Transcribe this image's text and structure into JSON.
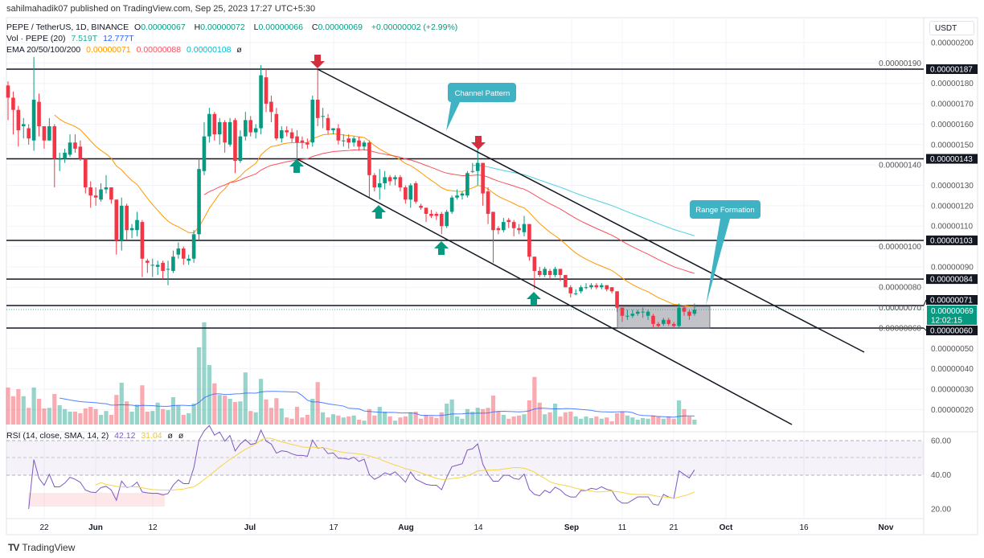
{
  "published": "sahilmahadik07 published on TradingView.com, Sep 25, 2023 17:27 UTC+5:30",
  "legend": {
    "symbol": "PEPE / TetherUS, 1D, BINANCE",
    "o_label": "O",
    "o": "0.00000067",
    "h_label": "H",
    "h": "0.00000072",
    "l_label": "L",
    "l": "0.00000066",
    "c_label": "C",
    "c": "0.00000069",
    "change": "+0.00000002 (+2.99%)",
    "vol_label": "Vol · PEPE (20)",
    "vol": "7.519T",
    "vol_ma": "12.777T",
    "ema_label": "EMA 20/50/100/200",
    "ema20": "0.00000071",
    "ema50": "0.00000088",
    "ema100": "0.00000108",
    "ema200": "ø"
  },
  "currency": "USDT",
  "last_price": {
    "value": "0.00000069",
    "countdown": "12:02:15"
  },
  "annotations": {
    "channel": "Channel Pattern",
    "range": "Range Formation"
  },
  "rsi": {
    "label": "RSI (14, close, SMA, 14, 2)",
    "value": "42.12",
    "sma": "31.04",
    "extra1": "ø",
    "extra2": "ø",
    "ticks": [
      "60.00",
      "40.00",
      "20.00"
    ]
  },
  "footer": {
    "brand": "TradingView"
  },
  "colors": {
    "up": "#089981",
    "down": "#f23645",
    "ema20": "#ff9800",
    "ema50": "#f7525f",
    "ema100": "#4dd0e1",
    "vol_ma": "#2962ff",
    "rsi": "#7e57c2",
    "rsi_sma": "#f5d545",
    "annotation": "#3fb3c4"
  },
  "chart_data": {
    "type": "candlestick",
    "title": "PEPE / TetherUS, 1D, BINANCE",
    "ylim": [
      1e-07,
      2.05e-06
    ],
    "price_axis_ticks": [
      "0.00000200",
      "0.00000190",
      "0.00000180",
      "0.00000170",
      "0.00000160",
      "0.00000150",
      "0.00000140",
      "0.00000130",
      "0.00000120",
      "0.00000110",
      "0.00000100",
      "0.00000090",
      "0.00000080",
      "0.00000070",
      "0.00000060",
      "0.00000050",
      "0.00000040",
      "0.00000030",
      "0.00000020"
    ],
    "time_axis_ticks": [
      "22",
      "Jun",
      "12",
      "Jul",
      "17",
      "Aug",
      "14",
      "Sep",
      "11",
      "21",
      "Oct",
      "16",
      "Nov"
    ],
    "levels": [
      {
        "value": 1.87e-06,
        "label": "0.00000187"
      },
      {
        "value": 1.43e-06,
        "label": "0.00000143"
      },
      {
        "value": 1.03e-06,
        "label": "0.00000103"
      },
      {
        "value": 8.4e-07,
        "label": "0.00000084"
      },
      {
        "value": 7.1e-07,
        "label": "0.00000071"
      },
      {
        "value": 6e-07,
        "label": "0.00000060"
      }
    ],
    "ohlc": [
      [
        1.79e-06,
        1.81e-06,
        1.62e-06,
        1.73e-06
      ],
      [
        1.73e-06,
        1.76e-06,
        1.55e-06,
        1.67e-06
      ],
      [
        1.67e-06,
        1.69e-06,
        1.49e-06,
        1.57e-06
      ],
      [
        1.59e-06,
        1.63e-06,
        1.53e-06,
        1.6e-06
      ],
      [
        1.58e-06,
        1.6e-06,
        1.5e-06,
        1.53e-06
      ],
      [
        1.52e-06,
        1.93e-06,
        1.47e-06,
        1.72e-06
      ],
      [
        1.71e-06,
        1.75e-06,
        1.54e-06,
        1.59e-06
      ],
      [
        1.59e-06,
        1.59e-06,
        1.48e-06,
        1.52e-06
      ],
      [
        1.52e-06,
        1.63e-06,
        1.52e-06,
        1.59e-06
      ],
      [
        1.59e-06,
        1.6e-06,
        1.29e-06,
        1.43e-06
      ],
      [
        1.43e-06,
        1.46e-06,
        1.37e-06,
        1.43e-06
      ],
      [
        1.43e-06,
        1.48e-06,
        1.41e-06,
        1.46e-06
      ],
      [
        1.45e-06,
        1.55e-06,
        1.44e-06,
        1.51e-06
      ],
      [
        1.51e-06,
        1.55e-06,
        1.46e-06,
        1.48e-06
      ],
      [
        1.49e-06,
        1.52e-06,
        1.42e-06,
        1.43e-06
      ],
      [
        1.43e-06,
        1.43e-06,
        1.26e-06,
        1.29e-06
      ],
      [
        1.29e-06,
        1.32e-06,
        1.19e-06,
        1.25e-06
      ],
      [
        1.25e-06,
        1.29e-06,
        1.2e-06,
        1.24e-06
      ],
      [
        1.23e-06,
        1.31e-06,
        1.22e-06,
        1.28e-06
      ],
      [
        1.28e-06,
        1.35e-06,
        1.26e-06,
        1.29e-06
      ],
      [
        1.29e-06,
        1.29e-06,
        1.21e-06,
        1.23e-06
      ],
      [
        1.23e-06,
        1.23e-06,
        9.6e-07,
        1.03e-06
      ],
      [
        1.03e-06,
        1.24e-06,
        9.8e-07,
        1.2e-06
      ],
      [
        1.2e-06,
        1.21e-06,
        1.03e-06,
        1.08e-06
      ],
      [
        1.08e-06,
        1.11e-06,
        1.04e-06,
        1.09e-06
      ],
      [
        1.08e-06,
        1.17e-06,
        1.05e-06,
        1.13e-06
      ],
      [
        1.12e-06,
        1.13e-06,
        8.5e-07,
        9.4e-07
      ],
      [
        9.3e-07,
        9.4e-07,
        8.7e-07,
        9.2e-07
      ],
      [
        9.1e-07,
        9.4e-07,
        8.5e-07,
        9.1e-07
      ],
      [
        9e-07,
        9.3e-07,
        8.6e-07,
        9.1e-07
      ],
      [
        9.2e-07,
        9.3e-07,
        8.4e-07,
        8.8e-07
      ],
      [
        8.9e-07,
        9.3e-07,
        8.1e-07,
        8.9e-07
      ],
      [
        8.8e-07,
        9.8e-07,
        8.7e-07,
        9.5e-07
      ],
      [
        9.6e-07,
        1.02e-06,
        9.4e-07,
        9.9e-07
      ],
      [
        9.9e-07,
        1e-06,
        9.1e-07,
        9.4e-07
      ],
      [
        9.3e-07,
        9.6e-07,
        9.1e-07,
        9.4e-07
      ],
      [
        9.4e-07,
        1.08e-06,
        9.2e-07,
        1.06e-06
      ],
      [
        1.06e-06,
        1.43e-06,
        1.03e-06,
        1.38e-06
      ],
      [
        1.37e-06,
        1.61e-06,
        1.35e-06,
        1.54e-06
      ],
      [
        1.54e-06,
        1.68e-06,
        1.51e-06,
        1.65e-06
      ],
      [
        1.65e-06,
        1.66e-06,
        1.52e-06,
        1.55e-06
      ],
      [
        1.55e-06,
        1.63e-06,
        1.5e-06,
        1.61e-06
      ],
      [
        1.61e-06,
        1.62e-06,
        1.46e-06,
        1.51e-06
      ],
      [
        1.5e-06,
        1.63e-06,
        1.49e-06,
        1.61e-06
      ],
      [
        1.62e-06,
        1.63e-06,
        1.36e-06,
        1.42e-06
      ],
      [
        1.42e-06,
        1.57e-06,
        1.41e-06,
        1.54e-06
      ],
      [
        1.54e-06,
        1.66e-06,
        1.52e-06,
        1.62e-06
      ],
      [
        1.62e-06,
        1.64e-06,
        1.54e-06,
        1.56e-06
      ],
      [
        1.56e-06,
        1.6e-06,
        1.53e-06,
        1.58e-06
      ],
      [
        1.58e-06,
        1.89e-06,
        1.55e-06,
        1.84e-06
      ],
      [
        1.83e-06,
        1.87e-06,
        1.66e-06,
        1.7e-06
      ],
      [
        1.71e-06,
        1.74e-06,
        1.61e-06,
        1.66e-06
      ],
      [
        1.65e-06,
        1.68e-06,
        1.52e-06,
        1.53e-06
      ],
      [
        1.53e-06,
        1.59e-06,
        1.51e-06,
        1.57e-06
      ],
      [
        1.57e-06,
        1.59e-06,
        1.54e-06,
        1.56e-06
      ],
      [
        1.56e-06,
        1.58e-06,
        1.51e-06,
        1.53e-06
      ],
      [
        1.54e-06,
        1.57e-06,
        1.43e-06,
        1.51e-06
      ],
      [
        1.52e-06,
        1.54e-06,
        1.48e-06,
        1.51e-06
      ],
      [
        1.51e-06,
        1.53e-06,
        1.48e-06,
        1.5e-06
      ],
      [
        1.51e-06,
        1.74e-06,
        1.49e-06,
        1.72e-06
      ],
      [
        1.72e-06,
        1.87e-06,
        1.59e-06,
        1.63e-06
      ],
      [
        1.64e-06,
        1.68e-06,
        1.58e-06,
        1.64e-06
      ],
      [
        1.63e-06,
        1.65e-06,
        1.55e-06,
        1.57e-06
      ],
      [
        1.57e-06,
        1.58e-06,
        1.55e-06,
        1.58e-06
      ],
      [
        1.58e-06,
        1.6e-06,
        1.5e-06,
        1.52e-06
      ],
      [
        1.52e-06,
        1.55e-06,
        1.49e-06,
        1.52e-06
      ],
      [
        1.53e-06,
        1.55e-06,
        1.48e-06,
        1.51e-06
      ],
      [
        1.51e-06,
        1.54e-06,
        1.49e-06,
        1.53e-06
      ],
      [
        1.52e-06,
        1.54e-06,
        1.47e-06,
        1.49e-06
      ],
      [
        1.49e-06,
        1.52e-06,
        1.47e-06,
        1.51e-06
      ],
      [
        1.51e-06,
        1.52e-06,
        1.24e-06,
        1.35e-06
      ],
      [
        1.35e-06,
        1.36e-06,
        1.27e-06,
        1.29e-06
      ],
      [
        1.29e-06,
        1.38e-06,
        1.23e-06,
        1.31e-06
      ],
      [
        1.31e-06,
        1.37e-06,
        1.28e-06,
        1.34e-06
      ],
      [
        1.34e-06,
        1.35e-06,
        1.3e-06,
        1.32e-06
      ],
      [
        1.33e-06,
        1.35e-06,
        1.3e-06,
        1.34e-06
      ],
      [
        1.34e-06,
        1.35e-06,
        1.27e-06,
        1.29e-06
      ],
      [
        1.29e-06,
        1.3e-06,
        1.21e-06,
        1.23e-06
      ],
      [
        1.23e-06,
        1.31e-06,
        1.19e-06,
        1.3e-06
      ],
      [
        1.31e-06,
        1.32e-06,
        1.21e-06,
        1.22e-06
      ],
      [
        1.2e-06,
        1.21e-06,
        1.18e-06,
        1.19e-06
      ],
      [
        1.19e-06,
        1.19e-06,
        1.12e-06,
        1.16e-06
      ],
      [
        1.16e-06,
        1.18e-06,
        1.14e-06,
        1.15e-06
      ],
      [
        1.16e-06,
        1.17e-06,
        1.13e-06,
        1.15e-06
      ],
      [
        1.16e-06,
        1.17e-06,
        1.06e-06,
        1.1e-06
      ],
      [
        1.1e-06,
        1.18e-06,
        1.09e-06,
        1.17e-06
      ],
      [
        1.17e-06,
        1.25e-06,
        1.16e-06,
        1.24e-06
      ],
      [
        1.24e-06,
        1.28e-06,
        1.23e-06,
        1.25e-06
      ],
      [
        1.25e-06,
        1.27e-06,
        1.23e-06,
        1.26e-06
      ],
      [
        1.25e-06,
        1.37e-06,
        1.24e-06,
        1.36e-06
      ],
      [
        1.37e-06,
        1.41e-06,
        1.36e-06,
        1.37e-06
      ],
      [
        1.37e-06,
        1.48e-06,
        1.3e-06,
        1.41e-06
      ],
      [
        1.41e-06,
        1.41e-06,
        1.2e-06,
        1.26e-06
      ],
      [
        1.27e-06,
        1.29e-06,
        1.11e-06,
        1.16e-06
      ],
      [
        1.17e-06,
        1.17e-06,
        9.2e-07,
        1.08e-06
      ],
      [
        1.09e-06,
        1.1e-06,
        1.06e-06,
        1.08e-06
      ],
      [
        1.08e-06,
        1.14e-06,
        1.07e-06,
        1.12e-06
      ],
      [
        1.13e-06,
        1.14e-06,
        1.09e-06,
        1.12e-06
      ],
      [
        1.12e-06,
        1.13e-06,
        1.05e-06,
        1.09e-06
      ],
      [
        1.09e-06,
        1.11e-06,
        1.06e-06,
        1.08e-06
      ],
      [
        1.07e-06,
        1.15e-06,
        1.05e-06,
        1.11e-06
      ],
      [
        1.11e-06,
        1.11e-06,
        9.3e-07,
        9.5e-07
      ],
      [
        9.5e-07,
        9.5e-07,
        7.9e-07,
        8.8e-07
      ],
      [
        8.8e-07,
        9e-07,
        8.5e-07,
        8.6e-07
      ],
      [
        8.6e-07,
        9e-07,
        8.5e-07,
        8.9e-07
      ],
      [
        8.8e-07,
        8.9e-07,
        8.4e-07,
        8.6e-07
      ],
      [
        8.6e-07,
        9e-07,
        8.5e-07,
        8.9e-07
      ],
      [
        8.9e-07,
        8.9e-07,
        8.3e-07,
        8.6e-07
      ],
      [
        8.6e-07,
        8.6e-07,
        8e-07,
        8e-07
      ],
      [
        8e-07,
        8.1e-07,
        7.5e-07,
        7.7e-07
      ],
      [
        7.7e-07,
        7.9e-07,
        7.6e-07,
        7.7e-07
      ],
      [
        7.8e-07,
        8.1e-07,
        7.7e-07,
        8e-07
      ],
      [
        8e-07,
        8.2e-07,
        7.9e-07,
        8e-07
      ],
      [
        8e-07,
        8.2e-07,
        7.9e-07,
        8.1e-07
      ],
      [
        8.1e-07,
        8.2e-07,
        7.9e-07,
        8e-07
      ],
      [
        8e-07,
        8.2e-07,
        7.9e-07,
        8.1e-07
      ],
      [
        8.1e-07,
        8.1e-07,
        7.8e-07,
        7.9e-07
      ],
      [
        8e-07,
        8e-07,
        7.7e-07,
        7.8e-07
      ],
      [
        7.8e-07,
        7.8e-07,
        6.8e-07,
        7e-07
      ],
      [
        7e-07,
        7e-07,
        6.3e-07,
        6.6e-07
      ],
      [
        6.6e-07,
        6.9e-07,
        6.4e-07,
        6.6e-07
      ],
      [
        6.6e-07,
        6.9e-07,
        6.5e-07,
        6.7e-07
      ],
      [
        6.7e-07,
        6.9e-07,
        6.6e-07,
        6.8e-07
      ],
      [
        6.8e-07,
        7e-07,
        6.5e-07,
        6.8e-07
      ],
      [
        6.6e-07,
        6.9e-07,
        6.4e-07,
        6.8e-07
      ],
      [
        6.6e-07,
        6.7e-07,
        6e-07,
        6.2e-07
      ],
      [
        6.2e-07,
        6.3e-07,
        6e-07,
        6.1e-07
      ],
      [
        6.2e-07,
        6.5e-07,
        6.1e-07,
        6.4e-07
      ],
      [
        6.4e-07,
        6.5e-07,
        6.1e-07,
        6.2e-07
      ],
      [
        6.2e-07,
        6.3e-07,
        6e-07,
        6.1e-07
      ],
      [
        6.1e-07,
        7.2e-07,
        6e-07,
        7e-07
      ],
      [
        7e-07,
        7.1e-07,
        6.6e-07,
        6.8e-07
      ],
      [
        6.8e-07,
        6.9e-07,
        6.4e-07,
        6.6e-07
      ],
      [
        6.7e-07,
        7.2e-07,
        6.6e-07,
        6.9e-07
      ]
    ],
    "volume_T": [
      57.5,
      44,
      55,
      44,
      26,
      57.5,
      40,
      25,
      26,
      47.5,
      30,
      24,
      20,
      20,
      17.5,
      25,
      27.5,
      24,
      15,
      21,
      15,
      46,
      65,
      36,
      20,
      31,
      61,
      20,
      21,
      34,
      24,
      22.5,
      42.5,
      30,
      15,
      17.5,
      32.5,
      120,
      159,
      92.5,
      64,
      46,
      45,
      40,
      35,
      36,
      81,
      21,
      19,
      71,
      39,
      26,
      41,
      25,
      11,
      9,
      27.5,
      11,
      15,
      40,
      66,
      19,
      11,
      16,
      14,
      11,
      12.5,
      14,
      7.5,
      6,
      24,
      14,
      27.5,
      20,
      12.5,
      6,
      11,
      12.5,
      19,
      20,
      9,
      15,
      12.5,
      10,
      19,
      32.5,
      39,
      12.5,
      9,
      24,
      20,
      26,
      24,
      26,
      45,
      21,
      15,
      9,
      12.5,
      14,
      16,
      37.5,
      74,
      34,
      16,
      19,
      32.5,
      12.5,
      19,
      20,
      12.5,
      9,
      12.5,
      10,
      12.5,
      9,
      11,
      5,
      17.5,
      20,
      14,
      11,
      7.5,
      10,
      9,
      14,
      12.5,
      9,
      12.5,
      9,
      37.5,
      24,
      12.5,
      7.519
    ]
  }
}
